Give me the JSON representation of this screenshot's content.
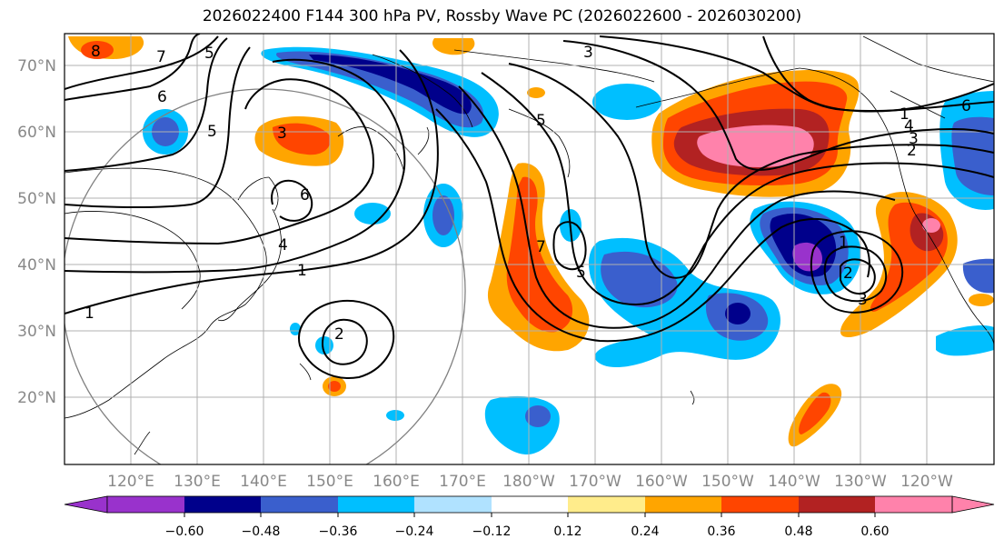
{
  "title": "2026022400 F144 300 hPa PV, Rossby Wave PC (2026022600 - 2026030200)",
  "lat_labels": [
    "70°N",
    "60°N",
    "50°N",
    "40°N",
    "30°N",
    "20°N"
  ],
  "lon_labels": [
    "120°E",
    "130°E",
    "140°E",
    "150°E",
    "160°E",
    "170°E",
    "180°W",
    "170°W",
    "160°W",
    "150°W",
    "140°W",
    "130°W",
    "120°W"
  ],
  "contour_labels": [
    "8",
    "7",
    "6",
    "5",
    "3",
    "5",
    "3",
    "6",
    "4",
    "1",
    "1",
    "2",
    "7",
    "5",
    "1",
    "2",
    "3",
    "5",
    "4",
    "3",
    "2",
    "6",
    "1"
  ],
  "colorbar": {
    "ticks": [
      "−0.60",
      "−0.48",
      "−0.36",
      "−0.24",
      "−0.12",
      "0.12",
      "0.24",
      "0.36",
      "0.48",
      "0.60"
    ],
    "colors": [
      "#9932cc",
      "#00008b",
      "#3a5fcd",
      "#00bfff",
      "#b0e2ff",
      "#ffffff",
      "#ffec8b",
      "#ffa500",
      "#ff4500",
      "#b22222",
      "#ff82ab"
    ]
  }
}
